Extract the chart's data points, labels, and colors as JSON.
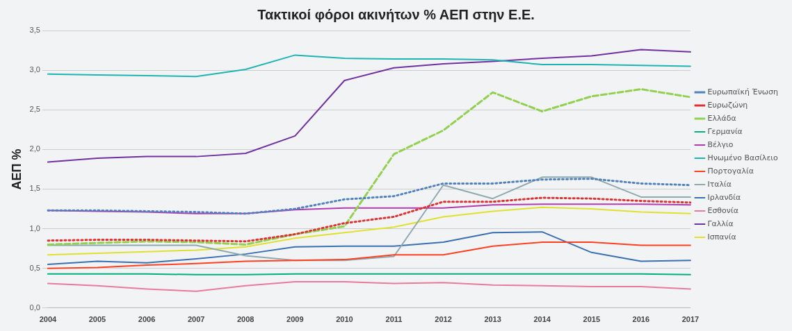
{
  "chart_data": {
    "type": "line",
    "title": "Τακτικοί φόροι ακινήτων % ΑΕΠ στην Ε.Ε.",
    "ylabel": "ΑΕΠ %",
    "categories": [
      "2004",
      "2005",
      "2006",
      "2007",
      "2008",
      "2009",
      "2010",
      "2011",
      "2012",
      "2013",
      "2014",
      "2015",
      "2016",
      "2017"
    ],
    "ylim": [
      0,
      3.5
    ],
    "yticks": [
      {
        "value": 0,
        "label": "0,0"
      },
      {
        "value": 0.5,
        "label": "0,5"
      },
      {
        "value": 1,
        "label": "1,0"
      },
      {
        "value": 1.5,
        "label": "1,5"
      },
      {
        "value": 2,
        "label": "2,0"
      },
      {
        "value": 2.5,
        "label": "2,5"
      },
      {
        "value": 3,
        "label": "3,0"
      },
      {
        "value": 3.5,
        "label": "3,5"
      }
    ],
    "grid": "y",
    "legend": "right",
    "marker": "none",
    "series": [
      {
        "name": "Ευρωπαϊκή Ένωση",
        "color": "#4f81bd",
        "line_style": "dotted",
        "values": [
          1.23,
          1.23,
          1.22,
          1.21,
          1.19,
          1.25,
          1.37,
          1.41,
          1.57,
          1.57,
          1.62,
          1.63,
          1.57,
          1.55
        ]
      },
      {
        "name": "Ευρωζώνη",
        "color": "#e03030",
        "line_style": "dotted",
        "values": [
          0.85,
          0.86,
          0.86,
          0.85,
          0.84,
          0.93,
          1.07,
          1.15,
          1.34,
          1.34,
          1.39,
          1.38,
          1.35,
          1.33
        ]
      },
      {
        "name": "Ελλάδα",
        "color": "#92d050",
        "line_style": "dashed",
        "values": [
          0.8,
          0.82,
          0.84,
          0.83,
          0.8,
          0.93,
          1.03,
          1.94,
          2.24,
          2.72,
          2.48,
          2.67,
          2.76,
          2.66
        ]
      },
      {
        "name": "Γερμανία",
        "color": "#00b07a",
        "line_style": "solid",
        "values": [
          0.43,
          0.43,
          0.43,
          0.42,
          0.42,
          0.43,
          0.43,
          0.43,
          0.43,
          0.43,
          0.43,
          0.43,
          0.43,
          0.42
        ]
      },
      {
        "name": "Βέλγιο",
        "color": "#b03cb0",
        "line_style": "solid",
        "values": [
          1.23,
          1.22,
          1.21,
          1.19,
          1.19,
          1.24,
          1.26,
          1.26,
          1.26,
          1.3,
          1.31,
          1.31,
          1.31,
          1.3
        ]
      },
      {
        "name": "Ηνωμένο Βασίλειο",
        "color": "#1fb4b4",
        "line_style": "solid",
        "values": [
          2.95,
          2.94,
          2.93,
          2.92,
          3.01,
          3.19,
          3.15,
          3.14,
          3.14,
          3.13,
          3.07,
          3.07,
          3.06,
          3.05
        ]
      },
      {
        "name": "Πορτογαλία",
        "color": "#ff4020",
        "line_style": "solid",
        "values": [
          0.5,
          0.51,
          0.54,
          0.56,
          0.59,
          0.6,
          0.61,
          0.67,
          0.67,
          0.78,
          0.83,
          0.83,
          0.79,
          0.79
        ]
      },
      {
        "name": "Ιταλία",
        "color": "#8ea9b0",
        "line_style": "solid",
        "values": [
          0.79,
          0.79,
          0.79,
          0.79,
          0.66,
          0.6,
          0.6,
          0.65,
          1.55,
          1.38,
          1.65,
          1.65,
          1.4,
          1.4
        ]
      },
      {
        "name": "Ιρλανδία",
        "color": "#3a6fb0",
        "line_style": "solid",
        "values": [
          0.55,
          0.59,
          0.57,
          0.62,
          0.68,
          0.77,
          0.78,
          0.78,
          0.83,
          0.95,
          0.96,
          0.7,
          0.59,
          0.6
        ]
      },
      {
        "name": "Εσθονία",
        "color": "#e87a9a",
        "line_style": "solid",
        "values": [
          0.31,
          0.28,
          0.24,
          0.21,
          0.28,
          0.33,
          0.33,
          0.31,
          0.32,
          0.29,
          0.28,
          0.27,
          0.27,
          0.24
        ]
      },
      {
        "name": "Γαλλία",
        "color": "#7030a0",
        "line_style": "solid",
        "values": [
          1.84,
          1.89,
          1.91,
          1.91,
          1.95,
          2.17,
          2.87,
          3.03,
          3.08,
          3.11,
          3.15,
          3.18,
          3.26,
          3.23
        ]
      },
      {
        "name": "Ισπανία",
        "color": "#e0e030",
        "line_style": "solid",
        "values": [
          0.67,
          0.69,
          0.71,
          0.73,
          0.77,
          0.88,
          0.95,
          1.02,
          1.15,
          1.22,
          1.27,
          1.25,
          1.21,
          1.19
        ]
      }
    ]
  }
}
